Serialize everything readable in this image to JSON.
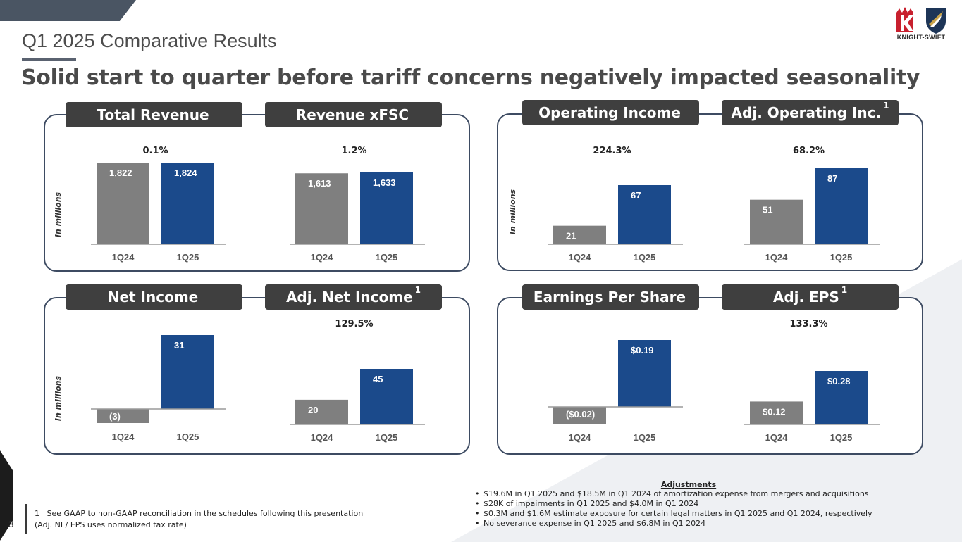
{
  "header": {
    "title": "Q1 2025 Comparative Results",
    "subtitle": "Solid start to quarter before tariff concerns negatively impacted seasonality"
  },
  "logo": {
    "text": "KNIGHT-SWIFT",
    "brand_red": "#c8202e",
    "brand_navy": "#1d3557"
  },
  "colors": {
    "prior": "#7f7f7f",
    "current": "#1b4a8b",
    "tab": "#3f3f3f",
    "panel_border": "#3d4b62"
  },
  "panels": [
    {
      "tabs": [
        {
          "label": "Total Revenue",
          "sup": ""
        },
        {
          "label": "Revenue xFSC",
          "sup": ""
        }
      ],
      "ylabel": "In millions"
    },
    {
      "tabs": [
        {
          "label": "Operating Income",
          "sup": ""
        },
        {
          "label": "Adj. Operating Inc.",
          "sup": "1"
        }
      ],
      "ylabel": "In millions"
    },
    {
      "tabs": [
        {
          "label": "Net Income",
          "sup": ""
        },
        {
          "label": "Adj. Net Income",
          "sup": "1"
        }
      ],
      "ylabel": "In millions"
    },
    {
      "tabs": [
        {
          "label": "Earnings Per Share",
          "sup": ""
        },
        {
          "label": "Adj. EPS",
          "sup": "1"
        }
      ],
      "ylabel": ""
    }
  ],
  "chart_data": [
    {
      "type": "bar",
      "title": "Total Revenue",
      "categories": [
        "1Q24",
        "1Q25"
      ],
      "values": [
        1822,
        1824
      ],
      "labels": [
        "1,822",
        "1,824"
      ],
      "change": "0.1%",
      "ylabel": "In millions"
    },
    {
      "type": "bar",
      "title": "Revenue xFSC",
      "categories": [
        "1Q24",
        "1Q25"
      ],
      "values": [
        1613,
        1633
      ],
      "labels": [
        "1,613",
        "1,633"
      ],
      "change": "1.2%",
      "ylabel": "In millions"
    },
    {
      "type": "bar",
      "title": "Operating Income",
      "categories": [
        "1Q24",
        "1Q25"
      ],
      "values": [
        21,
        67
      ],
      "labels": [
        "21",
        "67"
      ],
      "change": "224.3%",
      "ylabel": "In millions"
    },
    {
      "type": "bar",
      "title": "Adj. Operating Inc.",
      "categories": [
        "1Q24",
        "1Q25"
      ],
      "values": [
        51,
        87
      ],
      "labels": [
        "51",
        "87"
      ],
      "change": "68.2%",
      "ylabel": "In millions"
    },
    {
      "type": "bar",
      "title": "Net Income",
      "categories": [
        "1Q24",
        "1Q25"
      ],
      "values": [
        -3,
        31
      ],
      "labels": [
        "(3)",
        "31"
      ],
      "change": "",
      "ylabel": "In millions"
    },
    {
      "type": "bar",
      "title": "Adj. Net Income",
      "categories": [
        "1Q24",
        "1Q25"
      ],
      "values": [
        20,
        45
      ],
      "labels": [
        "20",
        "45"
      ],
      "change": "129.5%",
      "ylabel": "In millions"
    },
    {
      "type": "bar",
      "title": "Earnings Per Share",
      "categories": [
        "1Q24",
        "1Q25"
      ],
      "values": [
        -0.02,
        0.19
      ],
      "labels": [
        "($0.02)",
        "$0.19"
      ],
      "change": "",
      "ylabel": ""
    },
    {
      "type": "bar",
      "title": "Adj. EPS",
      "categories": [
        "1Q24",
        "1Q25"
      ],
      "values": [
        0.12,
        0.28
      ],
      "labels": [
        "$0.12",
        "$0.28"
      ],
      "change": "133.3%",
      "ylabel": ""
    }
  ],
  "footer": {
    "page_number": "3",
    "footnote_line1": "1   See GAAP to non-GAAP reconciliation in the schedules following this presentation",
    "footnote_line2": "(Adj. NI / EPS uses normalized tax rate)"
  },
  "adjustments": {
    "title": "Adjustments",
    "items": [
      "$19.6M in Q1 2025 and $18.5M in Q1 2024 of amortization expense from mergers and acquisitions",
      "$28K of impairments in Q1 2025 and $4.0M in Q1 2024",
      "$0.3M and $1.6M estimate exposure for certain legal matters  in Q1 2025 and Q1 2024, respectively",
      "No severance expense in Q1 2025 and $6.8M in Q1 2024"
    ]
  }
}
